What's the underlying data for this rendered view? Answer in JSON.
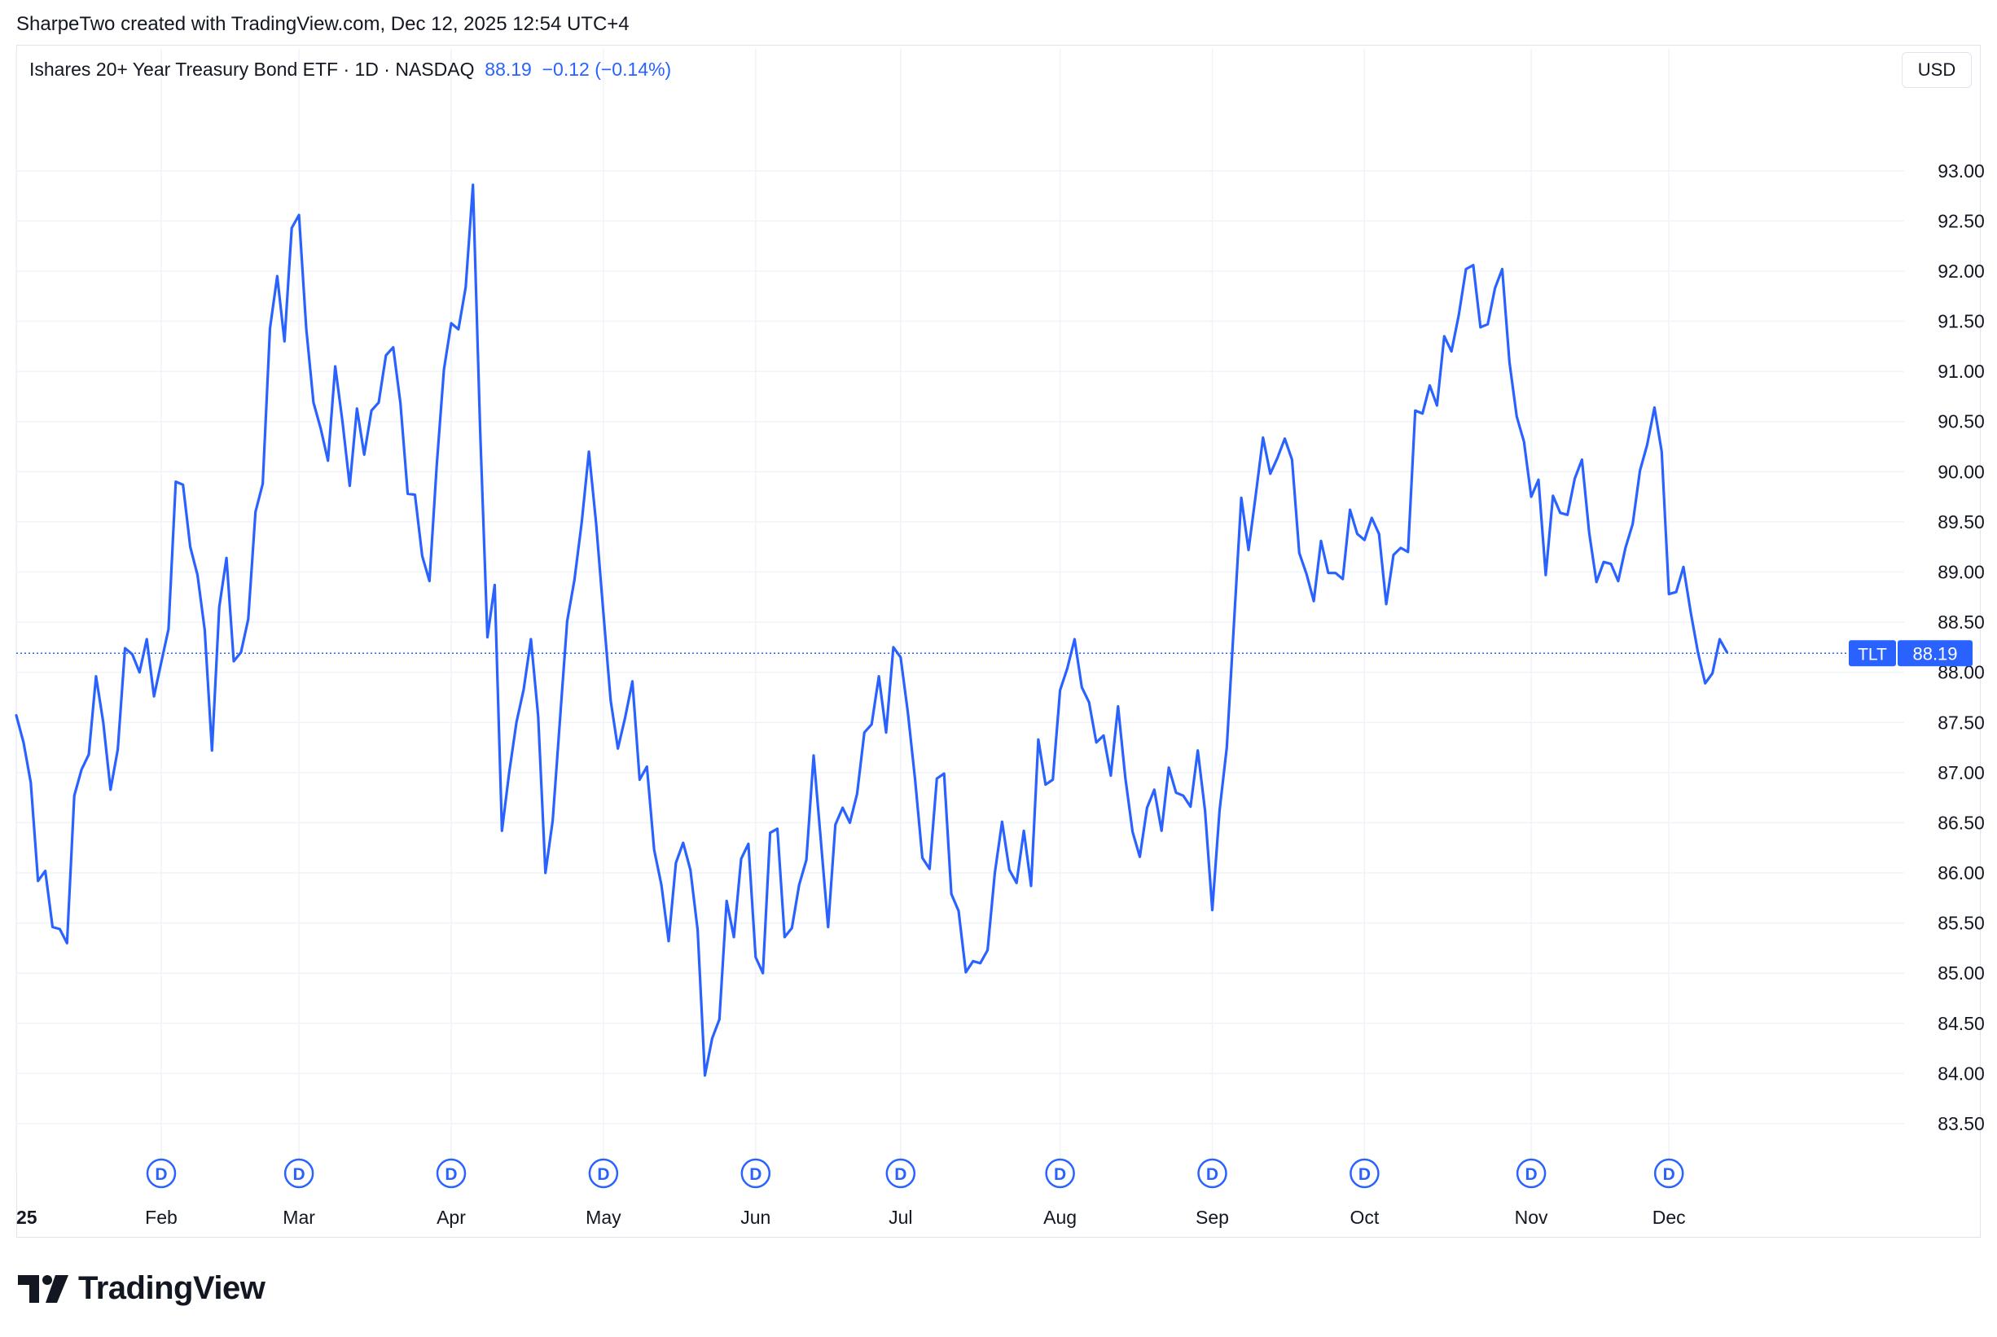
{
  "credit": "SharpeTwo created with TradingView.com, Dec 12, 2025 12:54 UTC+4",
  "legend": {
    "title": "Ishares 20+ Year Treasury Bond ETF · 1D · NASDAQ",
    "price": "88.19",
    "change": "−0.12 (−0.14%)"
  },
  "currency": "USD",
  "brand": "TradingView",
  "colors": {
    "line": "#2962ff",
    "grid": "#f0f3fa",
    "text": "#131722"
  },
  "chart_data": {
    "type": "line",
    "series": [
      {
        "name": "TLT",
        "values": [
          87.57,
          87.3,
          86.9,
          85.92,
          86.02,
          85.46,
          85.44,
          85.3,
          86.77,
          87.03,
          87.18,
          87.96,
          87.5,
          86.83,
          87.23,
          88.24,
          88.18,
          88.0,
          88.33,
          87.76,
          88.1,
          88.43,
          89.9,
          89.87,
          89.25,
          88.97,
          88.42,
          87.22,
          88.65,
          89.14,
          88.11,
          88.2,
          88.53,
          89.6,
          89.88,
          91.43,
          91.95,
          91.3,
          92.43,
          92.56,
          91.43,
          90.69,
          90.43,
          90.11,
          91.05,
          90.5,
          89.86,
          90.63,
          90.17,
          90.61,
          90.69,
          91.16,
          91.24,
          90.68,
          89.78,
          89.77,
          89.16,
          88.91,
          90.06,
          91.02,
          91.48,
          91.42,
          91.84,
          92.86,
          90.4,
          88.35,
          88.87,
          86.42,
          87.0,
          87.5,
          87.83,
          88.33,
          87.56,
          86.0,
          86.52,
          87.52,
          88.51,
          88.92,
          89.49,
          90.2,
          89.48,
          88.59,
          87.72,
          87.24,
          87.55,
          87.91,
          86.93,
          87.06,
          86.23,
          85.88,
          85.32,
          86.1,
          86.3,
          86.03,
          85.43,
          83.98,
          84.35,
          84.54,
          85.72,
          85.36,
          86.14,
          86.29,
          85.16,
          85.0,
          86.4,
          86.44,
          85.36,
          85.45,
          85.88,
          86.13,
          87.17,
          86.32,
          85.46,
          86.48,
          86.65,
          86.5,
          86.79,
          87.4,
          87.48,
          87.96,
          87.4,
          88.25,
          88.15,
          87.6,
          86.93,
          86.15,
          86.04,
          86.94,
          86.99,
          85.79,
          85.62,
          85.01,
          85.12,
          85.1,
          85.23,
          86.0,
          86.51,
          86.03,
          85.9,
          86.42,
          85.87,
          87.33,
          86.88,
          86.93,
          87.82,
          88.04,
          88.33,
          87.85,
          87.7,
          87.3,
          87.37,
          86.97,
          87.66,
          86.95,
          86.41,
          86.16,
          86.65,
          86.83,
          86.42,
          87.05,
          86.8,
          86.77,
          86.66,
          87.22,
          86.62,
          85.63,
          86.62,
          87.25,
          88.5,
          89.74,
          89.22,
          89.77,
          90.34,
          89.98,
          90.14,
          90.33,
          90.12,
          89.19,
          88.98,
          88.71,
          89.31,
          88.99,
          88.99,
          88.93,
          89.62,
          89.38,
          89.32,
          89.54,
          89.38,
          88.68,
          89.17,
          89.24,
          89.2,
          90.61,
          90.58,
          90.86,
          90.66,
          91.35,
          91.2,
          91.56,
          92.02,
          92.06,
          91.44,
          91.47,
          91.83,
          92.02,
          91.09,
          90.55,
          90.3,
          89.75,
          89.92,
          88.97,
          89.76,
          89.59,
          89.57,
          89.93,
          90.12,
          89.39,
          88.9,
          89.1,
          89.08,
          88.91,
          89.24,
          89.48,
          90.01,
          90.27,
          90.64,
          90.2,
          88.78,
          88.8,
          89.05,
          88.6,
          88.2,
          87.89,
          87.99,
          88.33,
          88.2
        ]
      }
    ],
    "x_ticks": [
      {
        "label": "25",
        "index": 0
      },
      {
        "label": "Feb",
        "index": 20
      },
      {
        "label": "Mar",
        "index": 39
      },
      {
        "label": "Apr",
        "index": 60
      },
      {
        "label": "May",
        "index": 81
      },
      {
        "label": "Jun",
        "index": 102
      },
      {
        "label": "Jul",
        "index": 122
      },
      {
        "label": "Aug",
        "index": 144
      },
      {
        "label": "Sep",
        "index": 165
      },
      {
        "label": "Oct",
        "index": 186
      },
      {
        "label": "Nov",
        "index": 209
      },
      {
        "label": "Dec",
        "index": 228
      }
    ],
    "dividend_marker_indices": [
      20,
      39,
      60,
      81,
      102,
      122,
      144,
      165,
      186,
      209,
      228
    ],
    "dividend_marker_label": "D",
    "y_ticks": [
      "93.00",
      "92.50",
      "92.00",
      "91.50",
      "91.00",
      "90.50",
      "90.00",
      "89.50",
      "89.00",
      "88.50",
      "88.00",
      "87.50",
      "87.00",
      "86.50",
      "86.00",
      "85.50",
      "85.00",
      "84.50",
      "84.00",
      "83.50"
    ],
    "ylim": [
      83.24,
      93.81
    ],
    "last_price_label": {
      "symbol": "TLT",
      "value": "88.19",
      "price": 88.19
    },
    "grid": true
  }
}
